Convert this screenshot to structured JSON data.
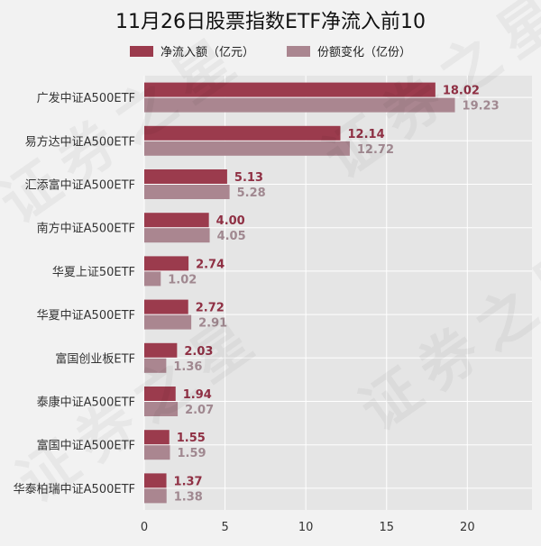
{
  "title": "11月26日股票指数ETF净流入前10",
  "watermark": "证券之星",
  "colors": {
    "background": "#f2f2f2",
    "plot_bg": "#e5e5e5",
    "grid": "#ffffff",
    "series1": "#9b3b4d",
    "series2": "#aa8690",
    "label1": "#8f2f43",
    "label2": "#a08890"
  },
  "chart_data": {
    "type": "bar",
    "orientation": "horizontal",
    "categories": [
      "广发中证A500ETF",
      "易方达中证A500ETF",
      "汇添富中证A500ETF",
      "南方中证A500ETF",
      "华夏上证50ETF",
      "华夏中证A500ETF",
      "富国创业板ETF",
      "泰康中证A500ETF",
      "富国中证A500ETF",
      "华泰柏瑞中证A500ETF"
    ],
    "series": [
      {
        "name": "净流入额（亿元）",
        "values": [
          18.02,
          12.14,
          5.13,
          4.0,
          2.74,
          2.72,
          2.03,
          1.94,
          1.55,
          1.37
        ],
        "labels": [
          "18.02",
          "12.14",
          "5.13",
          "4.00",
          "2.74",
          "2.72",
          "2.03",
          "1.94",
          "1.55",
          "1.37"
        ]
      },
      {
        "name": "份额变化（亿份）",
        "values": [
          19.23,
          12.72,
          5.28,
          4.05,
          1.02,
          2.91,
          1.36,
          2.07,
          1.59,
          1.38
        ],
        "labels": [
          "19.23",
          "12.72",
          "5.28",
          "4.05",
          "1.02",
          "2.91",
          "1.36",
          "2.07",
          "1.59",
          "1.38"
        ]
      }
    ],
    "xlim": [
      0,
      24
    ],
    "xticks": [
      0,
      5,
      10,
      15,
      20
    ],
    "grid": true,
    "legend_position": "top-center"
  }
}
